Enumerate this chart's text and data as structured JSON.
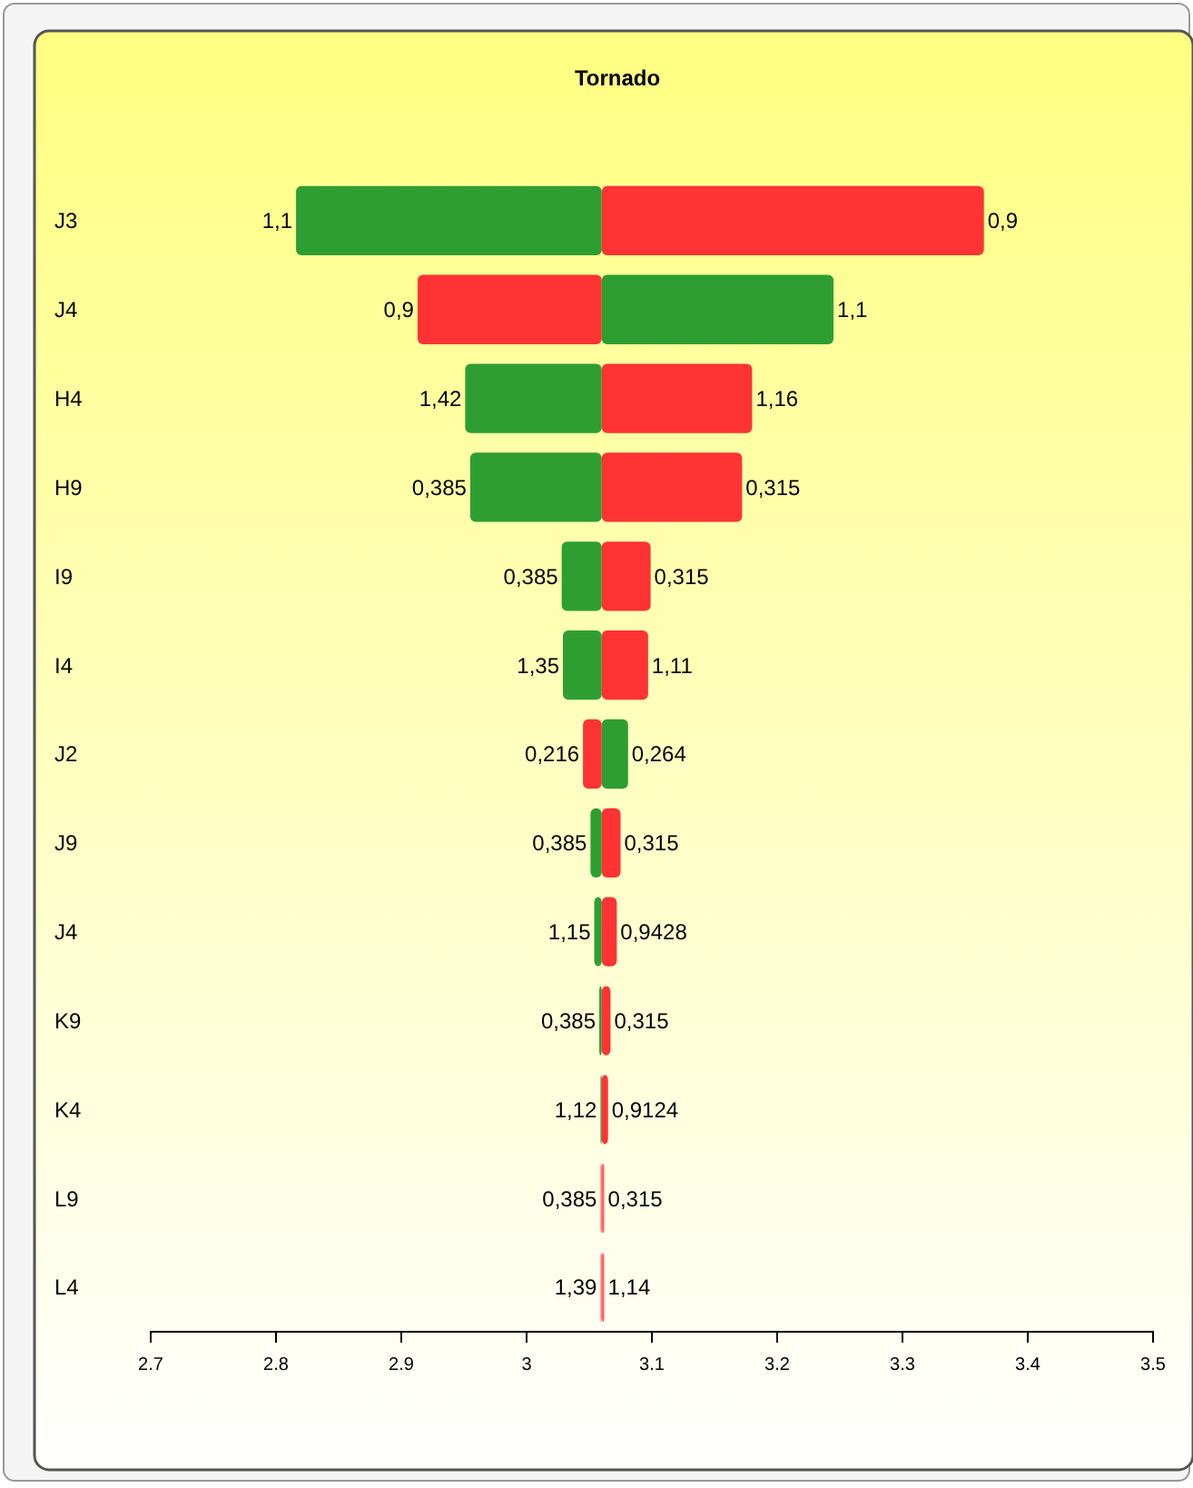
{
  "chart_data": {
    "type": "bar",
    "title": "Tornado",
    "orientation": "horizontal",
    "categories": [
      "J3",
      "J4",
      "H4",
      "H9",
      "I9",
      "I4",
      "J2",
      "J9",
      "J4",
      "K9",
      "K4",
      "L9",
      "L4"
    ],
    "series": [
      {
        "colors": [
          "#2f9e32",
          "#ff3333",
          "#2f9e32",
          "#2f9e32",
          "#2f9e32",
          "#2f9e32",
          "#ff3333",
          "#2f9e32",
          "#2f9e32",
          "#2f9e32",
          "#2f9e32",
          "#ff6666",
          "#ff6666"
        ],
        "base": [
          2.816,
          2.913,
          2.951,
          2.955,
          3.028,
          3.029,
          3.045,
          3.051,
          3.054,
          3.058,
          3.059,
          3.059,
          3.059
        ],
        "values": [
          0.244,
          0.147,
          0.109,
          0.105,
          0.032,
          0.031,
          0.015,
          0.009,
          0.006,
          0.002,
          0.001,
          0.001,
          0.001
        ]
      },
      {
        "colors": [
          "#ff3333",
          "#2f9e32",
          "#ff3333",
          "#ff3333",
          "#ff3333",
          "#ff3333",
          "#2f9e32",
          "#ff3333",
          "#ff3333",
          "#ff3333",
          "#ff3333",
          "#ff6666",
          "#ff6666"
        ],
        "base": [
          3.06,
          3.06,
          3.06,
          3.06,
          3.06,
          3.06,
          3.06,
          3.06,
          3.06,
          3.06,
          3.06,
          3.06,
          3.06
        ],
        "values": [
          0.305,
          0.185,
          0.12,
          0.112,
          0.039,
          0.037,
          0.021,
          0.015,
          0.012,
          0.007,
          0.005,
          0.002,
          0.002
        ]
      }
    ],
    "annotations": [
      {
        "text": "1,1",
        "x": 2.816,
        "y": "J3"
      },
      {
        "text": "0,9",
        "x": 3.365,
        "y": "J3"
      },
      {
        "text": "0,9",
        "x": 2.913,
        "y": "J4"
      },
      {
        "text": "1,1",
        "x": 3.245,
        "y": "J4"
      },
      {
        "text": "1,42",
        "x": 2.951,
        "y": "H4"
      },
      {
        "text": "1,16",
        "x": 3.18,
        "y": "H4"
      },
      {
        "text": "0,385",
        "x": 2.955,
        "y": "H9"
      },
      {
        "text": "0,315",
        "x": 3.172,
        "y": "H9"
      },
      {
        "text": "0,385",
        "x": 3.028,
        "y": "I9"
      },
      {
        "text": "0,315",
        "x": 3.099,
        "y": "I9"
      },
      {
        "text": "1,35",
        "x": 3.029,
        "y": "I4"
      },
      {
        "text": "1,11",
        "x": 3.097,
        "y": "I4"
      },
      {
        "text": "0,216",
        "x": 3.045,
        "y": "J2"
      },
      {
        "text": "0,264",
        "x": 3.081,
        "y": "J2"
      },
      {
        "text": "0,385",
        "x": 3.051,
        "y": "J9"
      },
      {
        "text": "0,315",
        "x": 3.075,
        "y": "J9"
      },
      "1,15",
      "0,9428",
      {
        "text": "0,385",
        "x": 3.058,
        "y": "K9"
      },
      {
        "text": "0,315",
        "x": 3.067,
        "y": "K9"
      },
      {
        "text": "1,12",
        "x": 3.059,
        "y": "K4"
      },
      {
        "text": "0,9124",
        "x": 3.065,
        "y": "K4"
      },
      {
        "text": "0,385",
        "x": 3.059,
        "y": "L9"
      },
      {
        "text": "0,315",
        "x": 3.062,
        "y": "L9"
      },
      {
        "text": "1,39",
        "x": 3.059,
        "y": "L4"
      },
      {
        "text": "1,14",
        "x": 3.062,
        "y": "L4"
      }
    ],
    "xlim": [
      2.7,
      3.5
    ],
    "xticks": [
      2.7,
      2.8,
      2.9,
      3,
      3.1,
      3.2,
      3.3,
      3.4,
      3.5
    ]
  }
}
